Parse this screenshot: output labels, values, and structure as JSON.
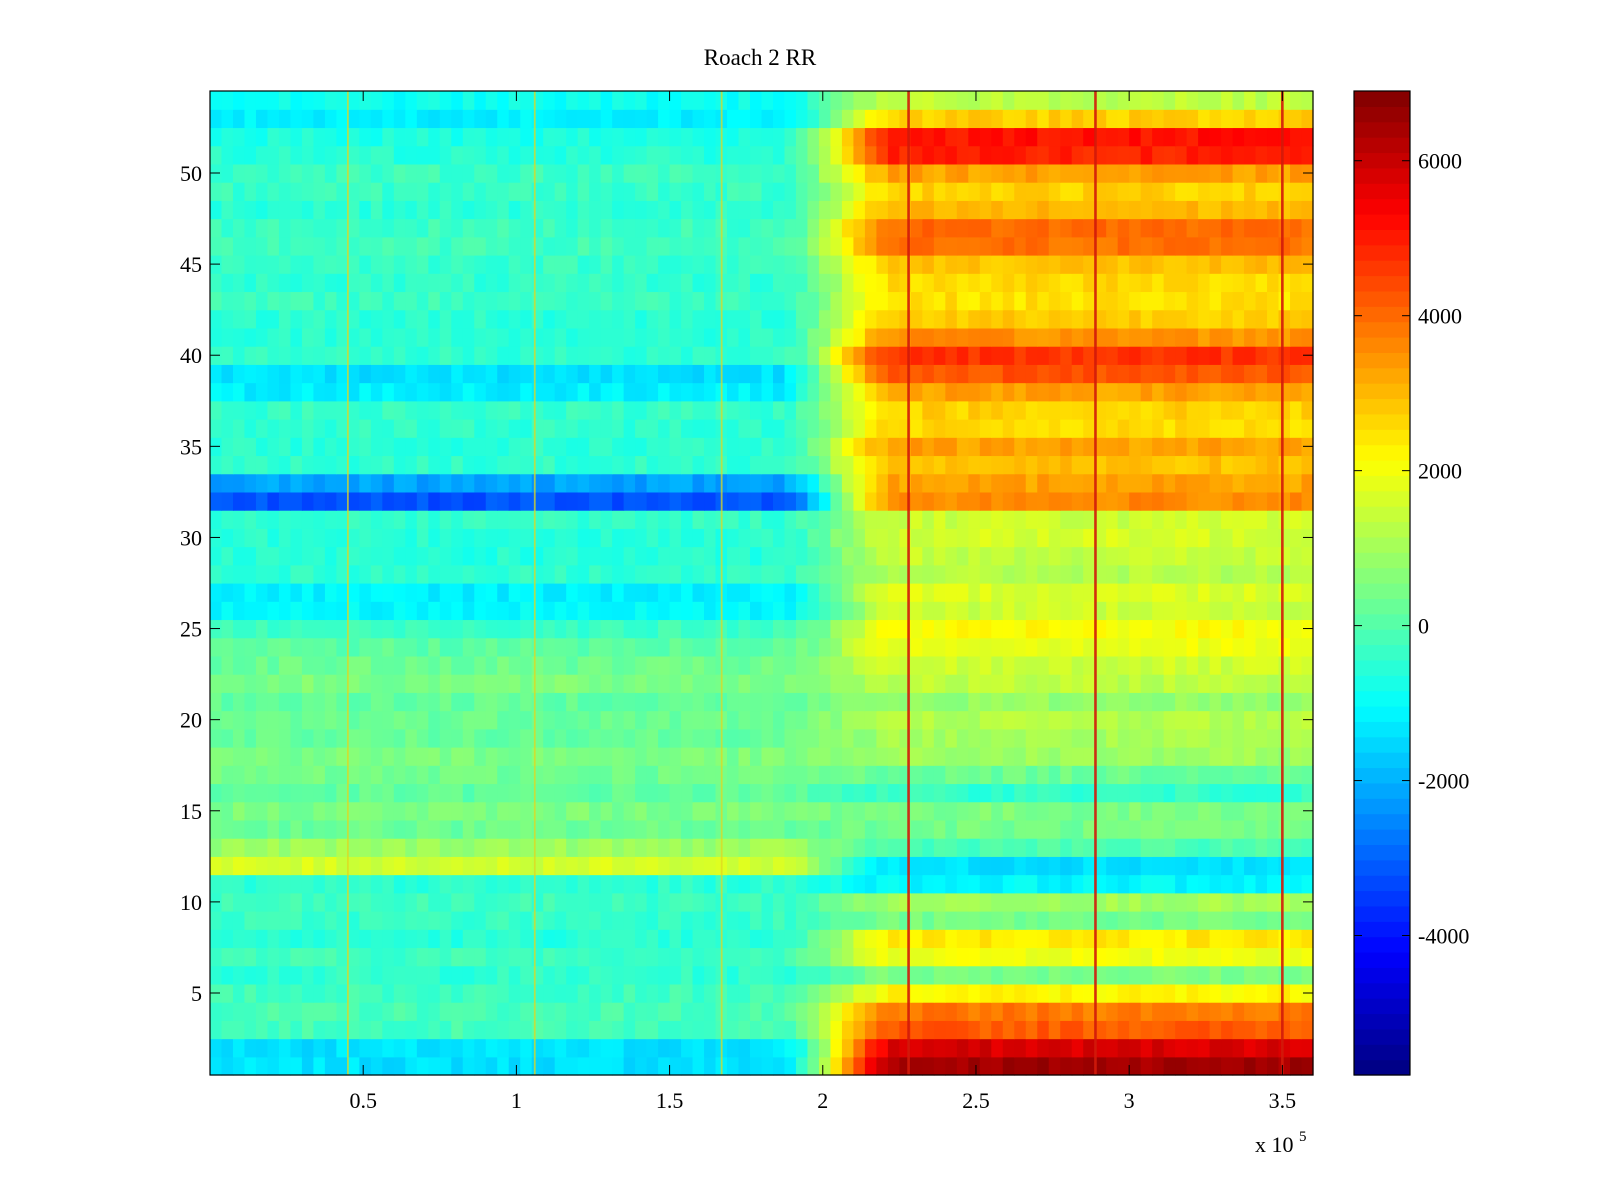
{
  "chart_data": {
    "type": "heatmap",
    "title": "Roach 2 RR",
    "xlabel": "",
    "ylabel": "",
    "x_exponent_label": "x 10",
    "x_exponent_power": "5",
    "xlim": [
      0,
      3.6
    ],
    "ylim": [
      0.5,
      54.5
    ],
    "xticks": [
      0.5,
      1,
      1.5,
      2,
      2.5,
      3,
      3.5
    ],
    "xtick_labels": [
      "0.5",
      "1",
      "1.5",
      "2",
      "2.5",
      "3",
      "3.5"
    ],
    "yticks": [
      5,
      10,
      15,
      20,
      25,
      30,
      35,
      40,
      45,
      50
    ],
    "ytick_labels": [
      "5",
      "10",
      "15",
      "20",
      "25",
      "30",
      "35",
      "40",
      "45",
      "50"
    ],
    "colorbar": {
      "range": [
        -5800,
        6900
      ],
      "ticks": [
        -4000,
        -2000,
        0,
        2000,
        4000,
        6000
      ],
      "tick_labels": [
        "-4000",
        "-2000",
        "0",
        "2000",
        "4000",
        "6000"
      ],
      "colormap": "jet"
    },
    "grid": false,
    "row_count": 54,
    "vertical_events_x": [
      0.45,
      1.06,
      1.67,
      2.28,
      2.89,
      3.5
    ],
    "transition_x": [
      1.85,
      2.25
    ],
    "row_values_left": [
      -1400,
      -1400,
      -200,
      -150,
      -250,
      -450,
      -250,
      -550,
      -350,
      -300,
      -500,
      1600,
      900,
      300,
      500,
      150,
      350,
      500,
      250,
      300,
      200,
      500,
      300,
      100,
      -300,
      -1100,
      -1200,
      -450,
      -600,
      -550,
      -400,
      -3200,
      -2200,
      -450,
      -500,
      -450,
      -400,
      -1200,
      -1400,
      -450,
      -500,
      -500,
      -300,
      -450,
      -350,
      -250,
      -300,
      -500,
      -350,
      -300,
      -550,
      -700,
      -1200,
      -900
    ],
    "row_values_right": [
      6500,
      5800,
      4200,
      3800,
      2200,
      500,
      2000,
      2400,
      400,
      1000,
      -1100,
      -1400,
      -100,
      400,
      500,
      -400,
      300,
      900,
      1000,
      1200,
      800,
      1300,
      1500,
      1900,
      2100,
      1500,
      1700,
      1200,
      1400,
      1600,
      1500,
      3600,
      3300,
      2900,
      3300,
      2600,
      2700,
      3300,
      4300,
      4700,
      3500,
      2800,
      2500,
      2600,
      2900,
      3900,
      4000,
      3000,
      2700,
      3300,
      4900,
      5100,
      2700,
      1300
    ]
  }
}
